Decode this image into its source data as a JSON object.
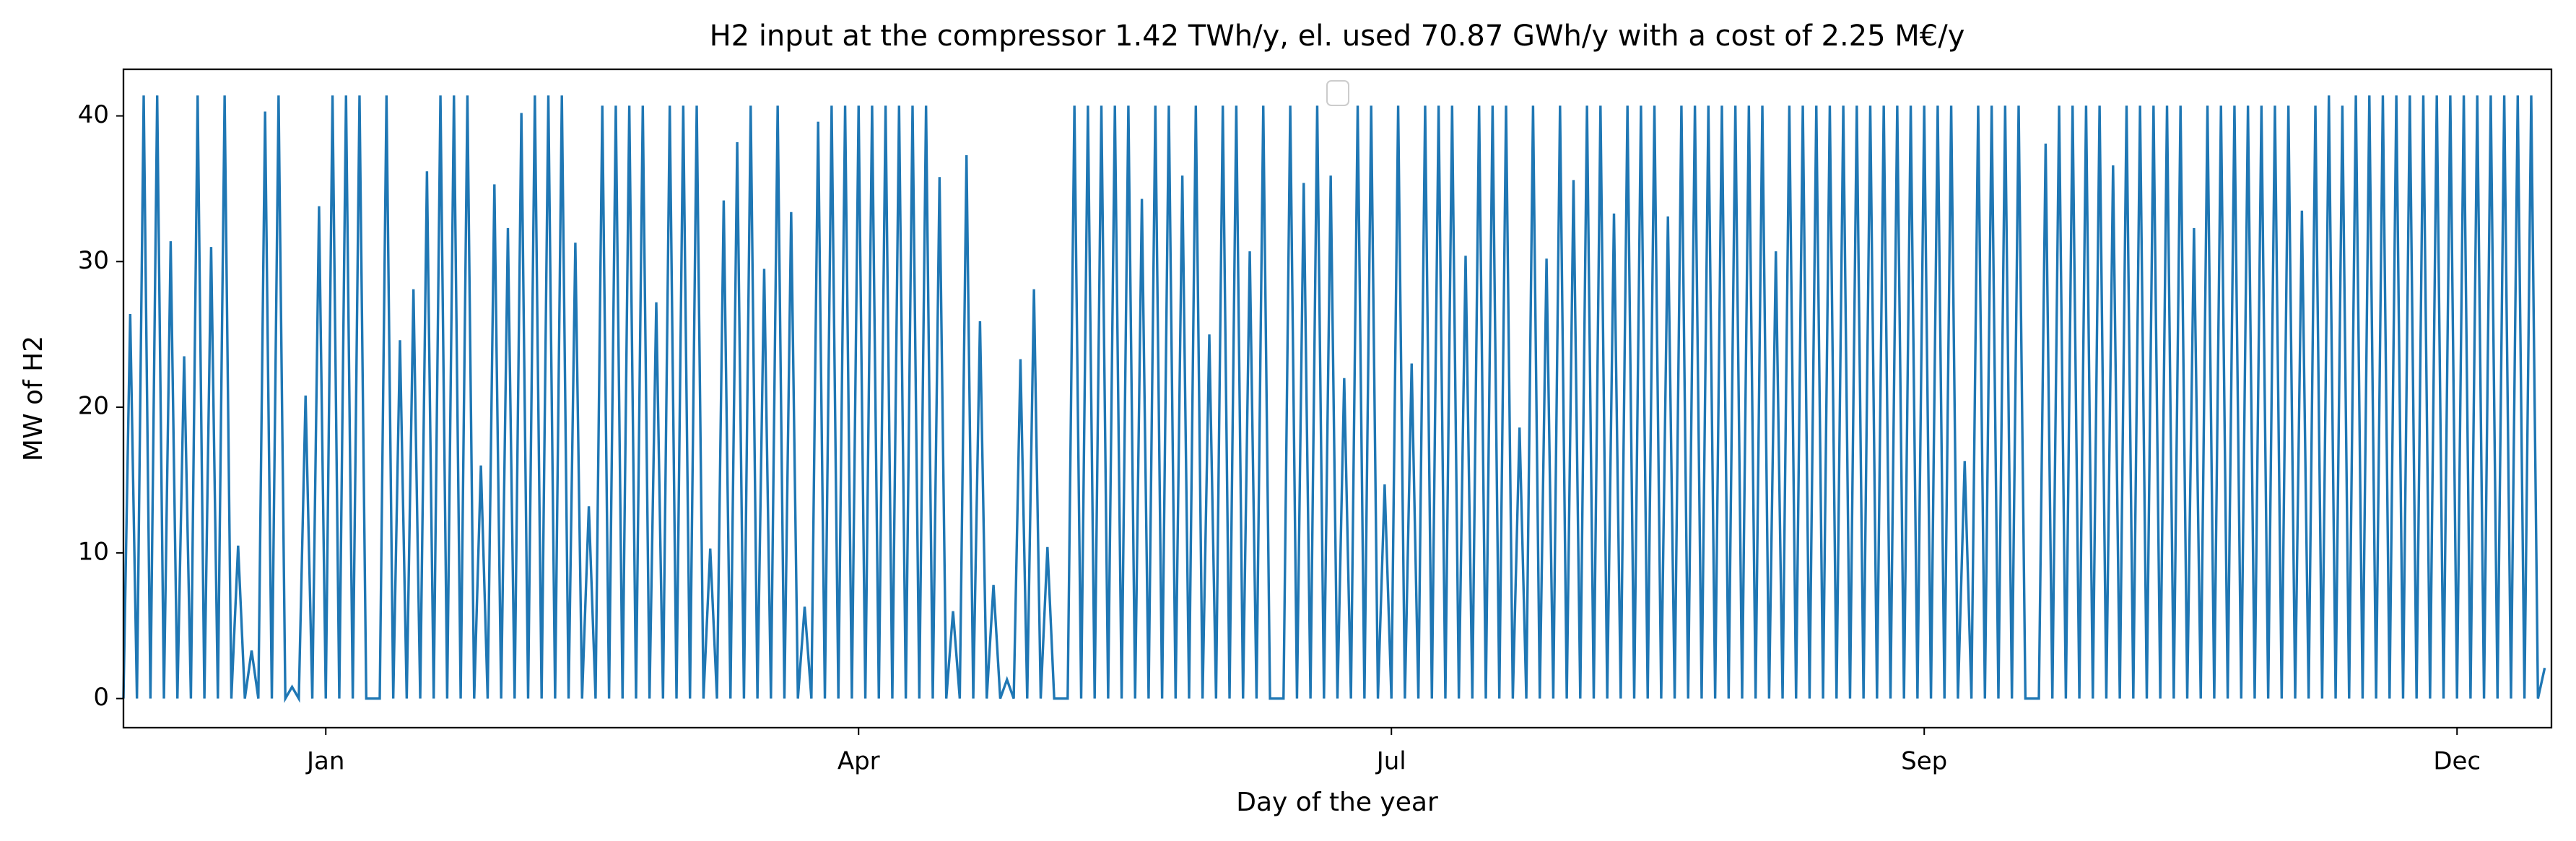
{
  "chart_data": {
    "type": "line",
    "title": "H2 input at the compressor 1.42 TWh/y, el. used 70.87 GWh/y with a cost of 2.25 M€/y",
    "x_label": "Day of the year",
    "y_label": "MW of H2",
    "xlim": [
      0,
      360
    ],
    "ylim": [
      -2.0,
      43.2
    ],
    "xticks": [
      {
        "value": 30,
        "label": "Jan"
      },
      {
        "value": 109,
        "label": "Apr"
      },
      {
        "value": 188,
        "label": "Jul"
      },
      {
        "value": 267,
        "label": "Sep"
      },
      {
        "value": 346,
        "label": "Dec"
      }
    ],
    "yticks": [
      0,
      10,
      20,
      30,
      40
    ],
    "x": [
      0,
      1,
      2,
      3,
      4,
      5,
      6,
      7,
      8,
      9,
      10,
      11,
      12,
      13,
      14,
      15,
      16,
      17,
      18,
      19,
      20,
      21,
      22,
      23,
      24,
      25,
      26,
      27,
      28,
      29,
      30,
      31,
      32,
      33,
      34,
      35,
      36,
      37,
      38,
      39,
      40,
      41,
      42,
      43,
      44,
      45,
      46,
      47,
      48,
      49,
      50,
      51,
      52,
      53,
      54,
      55,
      56,
      57,
      58,
      59,
      60,
      61,
      62,
      63,
      64,
      65,
      66,
      67,
      68,
      69,
      70,
      71,
      72,
      73,
      74,
      75,
      76,
      77,
      78,
      79,
      80,
      81,
      82,
      83,
      84,
      85,
      86,
      87,
      88,
      89,
      90,
      91,
      92,
      93,
      94,
      95,
      96,
      97,
      98,
      99,
      100,
      101,
      102,
      103,
      104,
      105,
      106,
      107,
      108,
      109,
      110,
      111,
      112,
      113,
      114,
      115,
      116,
      117,
      118,
      119,
      120,
      121,
      122,
      123,
      124,
      125,
      126,
      127,
      128,
      129,
      130,
      131,
      132,
      133,
      134,
      135,
      136,
      137,
      138,
      139,
      140,
      141,
      142,
      143,
      144,
      145,
      146,
      147,
      148,
      149,
      150,
      151,
      152,
      153,
      154,
      155,
      156,
      157,
      158,
      159,
      160,
      161,
      162,
      163,
      164,
      165,
      166,
      167,
      168,
      169,
      170,
      171,
      172,
      173,
      174,
      175,
      176,
      177,
      178,
      179,
      180,
      181,
      182,
      183,
      184,
      185,
      186,
      187,
      188,
      189,
      190,
      191,
      192,
      193,
      194,
      195,
      196,
      197,
      198,
      199,
      200,
      201,
      202,
      203,
      204,
      205,
      206,
      207,
      208,
      209,
      210,
      211,
      212,
      213,
      214,
      215,
      216,
      217,
      218,
      219,
      220,
      221,
      222,
      223,
      224,
      225,
      226,
      227,
      228,
      229,
      230,
      231,
      232,
      233,
      234,
      235,
      236,
      237,
      238,
      239,
      240,
      241,
      242,
      243,
      244,
      245,
      246,
      247,
      248,
      249,
      250,
      251,
      252,
      253,
      254,
      255,
      256,
      257,
      258,
      259,
      260,
      261,
      262,
      263,
      264,
      265,
      266,
      267,
      268,
      269,
      270,
      271,
      272,
      273,
      274,
      275,
      276,
      277,
      278,
      279,
      280,
      281,
      282,
      283,
      284,
      285,
      286,
      287,
      288,
      289,
      290,
      291,
      292,
      293,
      294,
      295,
      296,
      297,
      298,
      299,
      300,
      301,
      302,
      303,
      304,
      305,
      306,
      307,
      308,
      309,
      310,
      311,
      312,
      313,
      314,
      315,
      316,
      317,
      318,
      319,
      320,
      321,
      322,
      323,
      324,
      325,
      326,
      327,
      328,
      329,
      330,
      331,
      332,
      333,
      334,
      335,
      336,
      337,
      338,
      339,
      340,
      341,
      342,
      343,
      344,
      345,
      346,
      347,
      348,
      349,
      350,
      351,
      352,
      353,
      354,
      355,
      356,
      357,
      358,
      359
    ],
    "series": [
      {
        "color": "#1f77b4",
        "values": [
          0,
          26.4,
          0,
          41.4,
          0,
          41.4,
          0,
          31.4,
          0,
          23.5,
          0,
          41.4,
          0,
          31,
          0,
          41.4,
          0,
          10.5,
          0,
          3.3,
          0,
          40.3,
          0,
          41.4,
          0,
          0.8,
          0,
          20.8,
          0,
          33.8,
          0,
          41.4,
          0,
          41.4,
          0,
          41.4,
          0,
          0,
          0,
          41.4,
          0,
          24.6,
          0,
          28.1,
          0,
          36.2,
          0,
          41.4,
          0,
          41.4,
          0,
          41.4,
          0,
          16,
          0,
          35.3,
          0,
          32.3,
          0,
          40.2,
          0,
          41.4,
          0,
          41.4,
          0,
          41.4,
          0,
          31.3,
          0,
          13.2,
          0,
          40.7,
          0,
          40.7,
          0,
          40.7,
          0,
          40.7,
          0,
          27.2,
          0,
          40.7,
          0,
          40.7,
          0,
          40.7,
          0,
          10.3,
          0,
          34.2,
          0,
          38.2,
          0,
          40.7,
          0,
          29.5,
          0,
          40.7,
          0,
          33.4,
          0,
          6.3,
          0,
          39.6,
          0,
          40.7,
          0,
          40.7,
          0,
          40.7,
          0,
          40.7,
          0,
          40.7,
          0,
          40.7,
          0,
          40.7,
          0,
          40.7,
          0,
          35.8,
          0,
          6,
          0,
          37.3,
          0,
          25.9,
          0,
          7.8,
          0,
          1.3,
          0,
          23.3,
          0,
          28.1,
          0,
          10.4,
          0,
          0,
          0,
          40.7,
          0,
          40.7,
          0,
          40.7,
          0,
          40.7,
          0,
          40.7,
          0,
          34.3,
          0,
          40.7,
          0,
          40.7,
          0,
          35.9,
          0,
          40.7,
          0,
          25,
          0,
          40.7,
          0,
          40.7,
          0,
          30.7,
          0,
          40.7,
          0,
          0,
          0,
          40.7,
          0,
          35.4,
          0,
          40.7,
          0,
          35.9,
          0,
          22,
          0,
          40.7,
          0,
          40.7,
          0,
          14.7,
          0,
          40.7,
          0,
          23,
          0,
          40.7,
          0,
          40.7,
          0,
          40.7,
          0,
          30.4,
          0,
          40.7,
          0,
          40.7,
          0,
          40.7,
          0,
          18.6,
          0,
          40.7,
          0,
          30.2,
          0,
          40.7,
          0,
          35.6,
          0,
          40.7,
          0,
          40.7,
          0,
          33.3,
          0,
          40.7,
          0,
          40.7,
          0,
          40.7,
          0,
          33.1,
          0,
          40.7,
          0,
          40.7,
          0,
          40.7,
          0,
          40.7,
          0,
          40.7,
          0,
          40.7,
          0,
          40.7,
          0,
          30.7,
          0,
          40.7,
          0,
          40.7,
          0,
          40.7,
          0,
          40.7,
          0,
          40.7,
          0,
          40.7,
          0,
          40.7,
          0,
          40.7,
          0,
          40.7,
          0,
          40.7,
          0,
          40.7,
          0,
          40.7,
          0,
          40.7,
          0,
          16.3,
          0,
          40.7,
          0,
          40.7,
          0,
          40.7,
          0,
          40.7,
          0,
          0,
          0,
          38.1,
          0,
          40.7,
          0,
          40.7,
          0,
          40.7,
          0,
          40.7,
          0,
          36.6,
          0,
          40.7,
          0,
          40.7,
          0,
          40.7,
          0,
          40.7,
          0,
          40.7,
          0,
          32.3,
          0,
          40.7,
          0,
          40.7,
          0,
          40.7,
          0,
          40.7,
          0,
          40.7,
          0,
          40.7,
          0,
          40.7,
          0,
          33.5,
          0,
          40.7,
          0,
          41.4,
          0,
          40.7,
          0,
          41.4,
          0,
          41.4,
          0,
          41.4,
          0,
          41.4,
          0,
          41.4,
          0,
          41.4,
          0,
          41.4,
          0,
          41.4,
          0,
          41.4,
          0,
          41.4,
          0,
          41.4,
          0,
          41.4,
          0,
          41.4,
          0,
          41.4,
          0,
          2.1
        ]
      }
    ]
  }
}
